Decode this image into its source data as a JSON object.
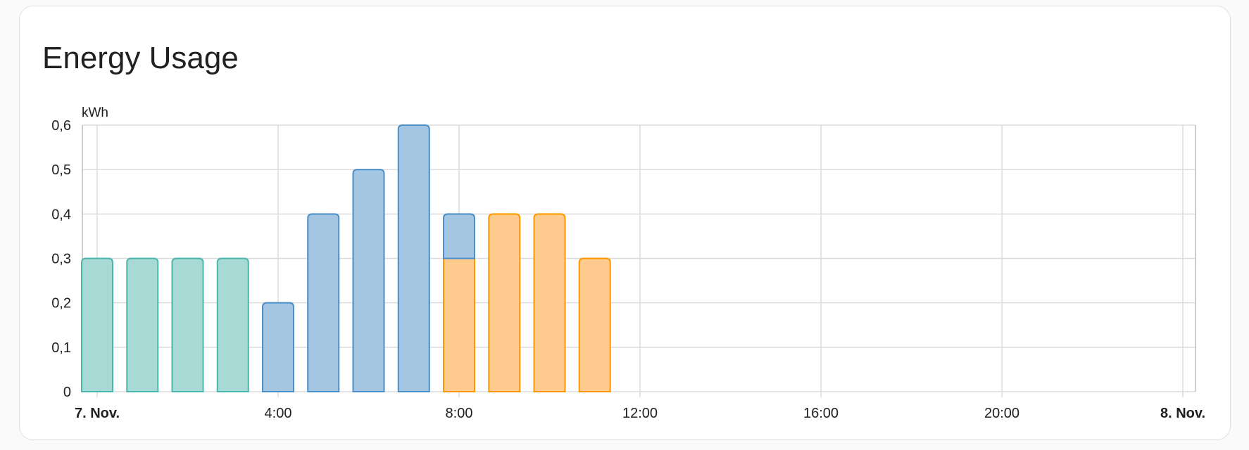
{
  "card": {
    "title": "Energy Usage"
  },
  "chart_data": {
    "type": "bar",
    "stacked": true,
    "title": "Energy Usage",
    "ylabel": "kWh",
    "xlabel": "",
    "ylim": [
      0,
      0.6
    ],
    "yticks": [
      "0",
      "0,1",
      "0,2",
      "0,3",
      "0,4",
      "0,5",
      "0,6"
    ],
    "ytick_values": [
      0,
      0.1,
      0.2,
      0.3,
      0.4,
      0.5,
      0.6
    ],
    "xlim_hours": [
      0,
      24
    ],
    "xticks": [
      {
        "hour": 0,
        "label": "7. Nov.",
        "bold": true
      },
      {
        "hour": 4,
        "label": "4:00",
        "bold": false
      },
      {
        "hour": 8,
        "label": "8:00",
        "bold": false
      },
      {
        "hour": 12,
        "label": "12:00",
        "bold": false
      },
      {
        "hour": 16,
        "label": "16:00",
        "bold": false
      },
      {
        "hour": 20,
        "label": "20:00",
        "bold": false
      },
      {
        "hour": 24,
        "label": "8. Nov.",
        "bold": true
      }
    ],
    "grid": true,
    "x_hours": [
      0,
      1,
      2,
      3,
      4,
      5,
      6,
      7,
      8,
      9,
      10,
      11
    ],
    "series": [
      {
        "color": "#4DB6AC",
        "fill": "#A8DAD5",
        "values": [
          0.3,
          0.3,
          0.3,
          0.3,
          0,
          0,
          0,
          0,
          0,
          0,
          0,
          0
        ]
      },
      {
        "color": "#FF9800",
        "fill": "#FFCA8E",
        "values": [
          0,
          0,
          0,
          0,
          0,
          0,
          0,
          0,
          0.3,
          0.4,
          0.4,
          0.3
        ]
      },
      {
        "color": "#4A8FC7",
        "fill": "#A5C6E2",
        "values": [
          0,
          0,
          0,
          0,
          0.2,
          0.4,
          0.5,
          0.6,
          0.1,
          0,
          0,
          0
        ]
      }
    ]
  }
}
